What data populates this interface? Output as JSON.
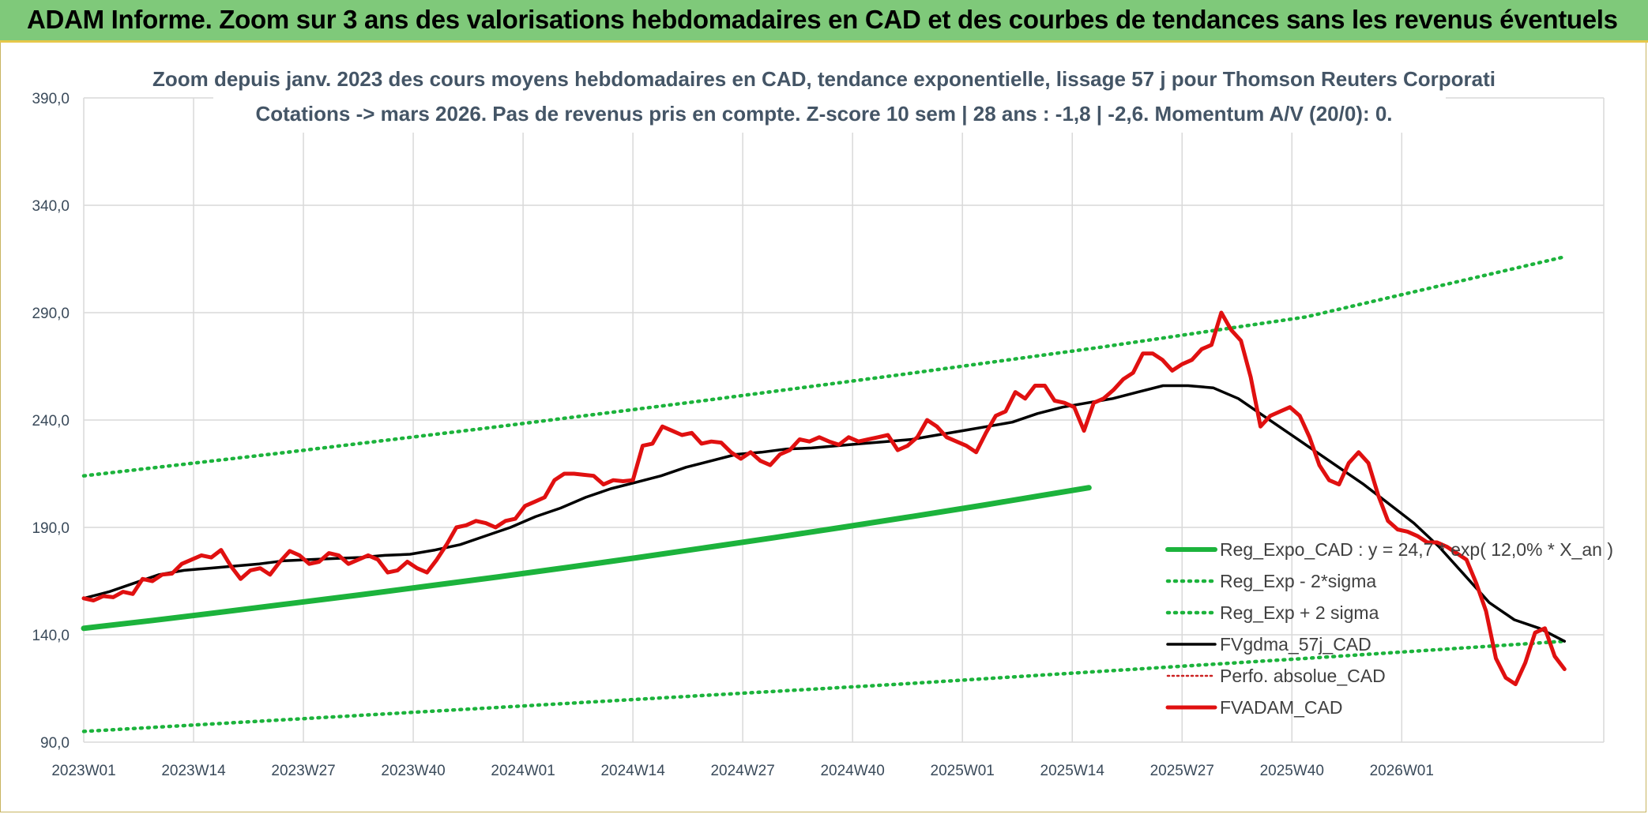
{
  "header": {
    "title": "ADAM Informe. Zoom sur 3 ans des valorisations hebdomadaires en CAD et des courbes de tendances sans les revenus éventuels"
  },
  "chart_data": {
    "type": "line",
    "subtitle_line1": "Zoom depuis janv. 2023 des cours moyens hebdomadaires en CAD, tendance exponentielle, lissage 57 j pour Thomson Reuters Corporati",
    "subtitle_line2": "Cotations -> mars 2026. Pas de revenus pris en compte. Z-score 10 sem | 28 ans : -1,8 | -2,6. Momentum A/V (20/0): 0.",
    "x_ticks": [
      "2023W01",
      "2023W14",
      "2023W27",
      "2023W40",
      "2024W01",
      "2024W14",
      "2024W27",
      "2024W40",
      "2025W01",
      "2025W14",
      "2025W27",
      "2025W40",
      "2026W01"
    ],
    "y_ticks": [
      "90,0",
      "140,0",
      "190,0",
      "240,0",
      "290,0",
      "340,0",
      "390,0"
    ],
    "ylim": [
      90,
      390
    ],
    "xlim": [
      "2023W01",
      "2026W12"
    ],
    "grid": true,
    "legend_position": "bottom-right",
    "colors": {
      "trend": "#1cb33c",
      "trend_bands": "#1cb33c",
      "smooth": "#000000",
      "perfo": "#cc2222",
      "price": "#e01010",
      "grid": "#d9d9d9"
    },
    "series": [
      {
        "name": "Reg_Expo_CAD : y = 24,7 * exp( 12,0% *  X_an )",
        "style": "solid-thick",
        "values": [
          [
            0,
            143.0
          ],
          [
            13,
            146.7
          ],
          [
            26,
            150.6
          ],
          [
            39,
            154.6
          ],
          [
            52,
            158.6
          ],
          [
            65,
            162.8
          ],
          [
            78,
            167.0
          ],
          [
            91,
            171.4
          ],
          [
            104,
            175.9
          ],
          [
            117,
            180.6
          ],
          [
            130,
            185.3
          ],
          [
            143,
            190.2
          ],
          [
            156,
            195.2
          ],
          [
            169,
            200.3
          ],
          [
            180,
            204.8
          ],
          [
            189,
            208.5
          ]
        ]
      },
      {
        "name": "Reg_Exp - 2*sigma",
        "style": "dotted",
        "values": [
          [
            0,
            95.0
          ],
          [
            26,
            100.5
          ],
          [
            52,
            106.0
          ],
          [
            78,
            111.5
          ],
          [
            104,
            117.0
          ],
          [
            130,
            123.0
          ],
          [
            156,
            129.0
          ],
          [
            189,
            137.0
          ]
        ]
      },
      {
        "name": "Reg_Exp + 2 sigma",
        "style": "dotted",
        "values": [
          [
            0,
            214.0
          ],
          [
            26,
            225.0
          ],
          [
            52,
            236.5
          ],
          [
            78,
            248.5
          ],
          [
            104,
            261.0
          ],
          [
            130,
            274.0
          ],
          [
            156,
            288.0
          ],
          [
            189,
            316.0
          ]
        ]
      },
      {
        "name": "FVgdma_57j_CAD",
        "style": "solid",
        "values": [
          [
            0,
            157.0
          ],
          [
            4,
            160.0
          ],
          [
            8,
            164.0
          ],
          [
            12,
            168.0
          ],
          [
            16,
            170.0
          ],
          [
            20,
            171.0
          ],
          [
            24,
            172.0
          ],
          [
            28,
            173.0
          ],
          [
            32,
            174.5
          ],
          [
            36,
            175.0
          ],
          [
            40,
            175.5
          ],
          [
            44,
            176.0
          ],
          [
            48,
            177.0
          ],
          [
            52,
            177.5
          ],
          [
            56,
            179.5
          ],
          [
            60,
            182.0
          ],
          [
            64,
            186.0
          ],
          [
            68,
            190.0
          ],
          [
            72,
            195.0
          ],
          [
            76,
            199.0
          ],
          [
            80,
            204.0
          ],
          [
            84,
            208.0
          ],
          [
            88,
            211.0
          ],
          [
            92,
            214.0
          ],
          [
            96,
            218.0
          ],
          [
            100,
            221.0
          ],
          [
            104,
            224.0
          ],
          [
            108,
            225.0
          ],
          [
            112,
            226.5
          ],
          [
            116,
            227.0
          ],
          [
            120,
            228.0
          ],
          [
            124,
            229.0
          ],
          [
            128,
            230.0
          ],
          [
            132,
            231.0
          ],
          [
            136,
            233.0
          ],
          [
            140,
            235.0
          ],
          [
            144,
            237.0
          ],
          [
            148,
            239.0
          ],
          [
            152,
            243.0
          ],
          [
            156,
            246.0
          ],
          [
            160,
            248.0
          ],
          [
            164,
            250.0
          ],
          [
            168,
            253.0
          ],
          [
            172,
            256.0
          ],
          [
            176,
            256.0
          ],
          [
            180,
            255.0
          ],
          [
            184,
            250.0
          ],
          [
            188,
            242.0
          ],
          [
            192,
            234.0
          ],
          [
            196,
            226.0
          ],
          [
            200,
            218.0
          ],
          [
            204,
            210.0
          ],
          [
            208,
            201.0
          ],
          [
            212,
            192.0
          ],
          [
            216,
            181.0
          ],
          [
            220,
            168.0
          ],
          [
            224,
            155.0
          ],
          [
            228,
            147.0
          ],
          [
            232,
            143.0
          ],
          [
            236,
            137.0
          ]
        ]
      },
      {
        "name": "Perfo. absolue_CAD",
        "style": "dotted-thin",
        "values": []
      },
      {
        "name": "FVADAM_CAD",
        "style": "solid-thick",
        "values": [
          [
            0,
            157.0
          ],
          [
            2,
            156.0
          ],
          [
            4,
            158.0
          ],
          [
            6,
            157.5
          ],
          [
            8,
            160.0
          ],
          [
            10,
            159.0
          ],
          [
            12,
            166.0
          ],
          [
            14,
            165.0
          ],
          [
            16,
            168.0
          ],
          [
            18,
            168.5
          ],
          [
            20,
            173.0
          ],
          [
            22,
            175.0
          ],
          [
            24,
            177.0
          ],
          [
            26,
            176.0
          ],
          [
            28,
            179.5
          ],
          [
            30,
            172.0
          ],
          [
            32,
            166.0
          ],
          [
            34,
            170.0
          ],
          [
            36,
            171.0
          ],
          [
            38,
            168.0
          ],
          [
            40,
            174.0
          ],
          [
            42,
            179.0
          ],
          [
            44,
            177.0
          ],
          [
            46,
            173.0
          ],
          [
            48,
            174.0
          ],
          [
            50,
            178.0
          ],
          [
            52,
            177.0
          ],
          [
            54,
            173.0
          ],
          [
            56,
            175.0
          ],
          [
            58,
            177.0
          ],
          [
            60,
            175.0
          ],
          [
            62,
            169.0
          ],
          [
            64,
            170.0
          ],
          [
            66,
            174.0
          ],
          [
            68,
            171.0
          ],
          [
            70,
            169.0
          ],
          [
            72,
            175.0
          ],
          [
            74,
            182.0
          ],
          [
            76,
            190.0
          ],
          [
            78,
            191.0
          ],
          [
            80,
            193.0
          ],
          [
            82,
            192.0
          ],
          [
            84,
            190.0
          ],
          [
            86,
            193.0
          ],
          [
            88,
            194.0
          ],
          [
            90,
            200.0
          ],
          [
            92,
            202.0
          ],
          [
            94,
            204.0
          ],
          [
            96,
            212.0
          ],
          [
            98,
            215.0
          ],
          [
            100,
            215.0
          ],
          [
            102,
            214.5
          ],
          [
            104,
            214.0
          ],
          [
            106,
            210.0
          ],
          [
            108,
            212.0
          ],
          [
            110,
            211.5
          ],
          [
            112,
            212.0
          ],
          [
            114,
            228.0
          ],
          [
            116,
            229.0
          ],
          [
            118,
            237.0
          ],
          [
            120,
            235.0
          ],
          [
            122,
            233.0
          ],
          [
            124,
            234.0
          ],
          [
            126,
            229.0
          ],
          [
            128,
            230.0
          ],
          [
            130,
            229.5
          ],
          [
            132,
            225.0
          ],
          [
            134,
            222.0
          ],
          [
            136,
            225.0
          ],
          [
            138,
            221.0
          ],
          [
            140,
            219.0
          ],
          [
            142,
            224.0
          ],
          [
            144,
            226.0
          ],
          [
            146,
            231.0
          ],
          [
            148,
            230.0
          ],
          [
            150,
            232.0
          ],
          [
            152,
            230.0
          ],
          [
            154,
            228.5
          ],
          [
            156,
            232.0
          ],
          [
            158,
            230.0
          ],
          [
            160,
            231.0
          ],
          [
            162,
            232.0
          ],
          [
            164,
            233.0
          ],
          [
            166,
            226.0
          ],
          [
            168,
            228.0
          ],
          [
            170,
            232.0
          ],
          [
            172,
            240.0
          ],
          [
            174,
            237.0
          ],
          [
            176,
            232.0
          ],
          [
            178,
            230.0
          ],
          [
            180,
            228.0
          ],
          [
            182,
            225.0
          ],
          [
            184,
            234.0
          ],
          [
            186,
            242.0
          ],
          [
            188,
            244.0
          ],
          [
            190,
            253.0
          ],
          [
            192,
            250.0
          ],
          [
            194,
            256.0
          ],
          [
            196,
            256.0
          ],
          [
            198,
            249.0
          ],
          [
            200,
            248.0
          ],
          [
            202,
            246.0
          ],
          [
            204,
            235.0
          ],
          [
            206,
            248.0
          ],
          [
            208,
            250.0
          ],
          [
            210,
            254.0
          ],
          [
            212,
            259.0
          ],
          [
            214,
            262.0
          ],
          [
            216,
            271.0
          ],
          [
            218,
            271.0
          ],
          [
            220,
            268.0
          ],
          [
            222,
            263.0
          ],
          [
            224,
            266.0
          ],
          [
            226,
            268.0
          ],
          [
            228,
            273.0
          ],
          [
            230,
            275.0
          ],
          [
            232,
            290.0
          ],
          [
            234,
            282.0
          ],
          [
            236,
            277.0
          ],
          [
            238,
            260.0
          ],
          [
            240,
            237.0
          ],
          [
            242,
            242.0
          ],
          [
            244,
            244.0
          ],
          [
            246,
            246.0
          ],
          [
            248,
            242.0
          ],
          [
            250,
            232.0
          ],
          [
            252,
            219.0
          ],
          [
            254,
            212.0
          ],
          [
            256,
            210.0
          ],
          [
            258,
            220.0
          ],
          [
            260,
            225.0
          ],
          [
            262,
            220.0
          ],
          [
            264,
            205.0
          ],
          [
            266,
            193.0
          ],
          [
            268,
            189.0
          ],
          [
            270,
            188.0
          ],
          [
            272,
            186.0
          ],
          [
            274,
            183.0
          ],
          [
            276,
            183.0
          ],
          [
            278,
            181.0
          ],
          [
            280,
            178.0
          ],
          [
            282,
            175.0
          ],
          [
            284,
            164.0
          ],
          [
            286,
            151.0
          ],
          [
            288,
            129.0
          ],
          [
            290,
            120.0
          ],
          [
            292,
            117.0
          ],
          [
            294,
            127.0
          ],
          [
            296,
            141.0
          ],
          [
            298,
            143.0
          ],
          [
            300,
            130.0
          ],
          [
            302,
            124.0
          ]
        ]
      }
    ]
  }
}
